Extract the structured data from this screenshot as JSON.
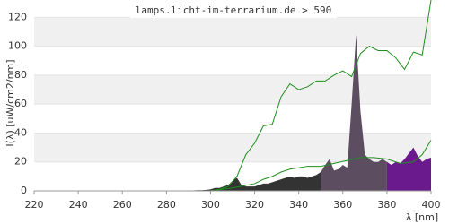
{
  "chart_data": {
    "type": "spectrum",
    "title": "lamps.licht-im-terrarium.de > 590",
    "x_label": "λ [nm]",
    "y_label": "I(λ)  [uW/cm2/nm]",
    "xlim": [
      220,
      400
    ],
    "ylim": [
      0,
      132
    ],
    "xticks": [
      220,
      240,
      260,
      280,
      300,
      320,
      340,
      360,
      380,
      400
    ],
    "yticks": [
      0,
      20,
      40,
      60,
      80,
      100,
      120
    ],
    "bands": true,
    "areas": [
      {
        "color": "#333333",
        "x": [
          290,
          292,
          294,
          296,
          298,
          300,
          302,
          304,
          306,
          308,
          310,
          312,
          314,
          316,
          318,
          320,
          322,
          324,
          326,
          328,
          330,
          332,
          334,
          336,
          338,
          340,
          342,
          344,
          346,
          348,
          350
        ],
        "values": [
          0,
          0.3,
          0.5,
          0.5,
          0.7,
          1,
          2,
          2,
          3,
          4,
          7,
          9,
          4,
          3,
          3,
          3,
          4,
          5,
          5,
          6,
          7,
          8,
          9,
          10,
          9,
          10,
          10,
          9,
          10,
          11,
          13
        ]
      },
      {
        "color": "#5c4d60",
        "x": [
          350,
          352,
          354,
          356,
          358,
          360,
          362,
          364,
          366,
          368,
          370,
          372,
          374,
          376,
          378,
          380
        ],
        "values": [
          13,
          18,
          22,
          14,
          15,
          18,
          16,
          60,
          108,
          55,
          25,
          22,
          20,
          20,
          22,
          20
        ]
      },
      {
        "color": "#6a1a8c",
        "x": [
          380,
          382,
          384,
          386,
          388,
          390,
          392,
          394,
          396,
          398,
          400
        ],
        "values": [
          20,
          18,
          20,
          19,
          22,
          26,
          30,
          24,
          20,
          22,
          23
        ]
      }
    ],
    "series": [
      {
        "color": "#1f8f1f",
        "x": [
          300,
          304,
          308,
          312,
          316,
          320,
          324,
          328,
          332,
          336,
          340,
          344,
          348,
          352,
          356,
          360,
          364,
          368,
          372,
          376,
          380,
          384,
          388,
          392,
          396,
          400
        ],
        "values": [
          0,
          1,
          3,
          10,
          25,
          33,
          45,
          46,
          65,
          74,
          70,
          72,
          76,
          76,
          80,
          83,
          79,
          95,
          100,
          97,
          97,
          92,
          84,
          96,
          94,
          132
        ]
      },
      {
        "color": "#1f8f1f",
        "x": [
          300,
          310,
          320,
          324,
          328,
          332,
          336,
          340,
          344,
          350,
          356,
          362,
          368,
          374,
          380,
          386,
          392,
          396,
          400
        ],
        "values": [
          0,
          2,
          5,
          8,
          10,
          13,
          15,
          16,
          17,
          17,
          19,
          21,
          23,
          23,
          22,
          19,
          20,
          25,
          35
        ]
      }
    ]
  }
}
